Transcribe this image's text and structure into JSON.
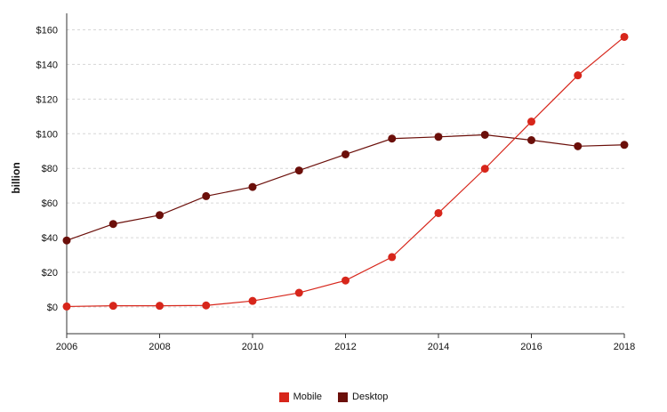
{
  "chart_data": {
    "type": "line",
    "title": "",
    "xlabel": "",
    "ylabel": "billion",
    "x": [
      2006,
      2007,
      2008,
      2009,
      2010,
      2011,
      2012,
      2013,
      2014,
      2015,
      2016,
      2017,
      2018
    ],
    "xticks": [
      "2006",
      "2008",
      "2010",
      "2012",
      "2014",
      "2016",
      "2018"
    ],
    "yticks": [
      "$0",
      "$20",
      "$40",
      "$60",
      "$80",
      "$100",
      "$120",
      "$140",
      "$160"
    ],
    "xlim": [
      2006,
      2018
    ],
    "ylim": [
      -15,
      170
    ],
    "grid": true,
    "legend_position": "bottom",
    "series": [
      {
        "name": "Mobile",
        "color": "#d7261b",
        "values": [
          0.3,
          0.7,
          0.7,
          0.9,
          3.5,
          8.2,
          15.3,
          28.8,
          54.2,
          79.8,
          107.0,
          133.7,
          155.9
        ]
      },
      {
        "name": "Desktop",
        "color": "#6b0f0a",
        "values": [
          38.4,
          47.9,
          53.0,
          64.0,
          69.3,
          78.8,
          88.1,
          97.2,
          98.2,
          99.4,
          96.3,
          92.8,
          93.6
        ]
      }
    ]
  }
}
